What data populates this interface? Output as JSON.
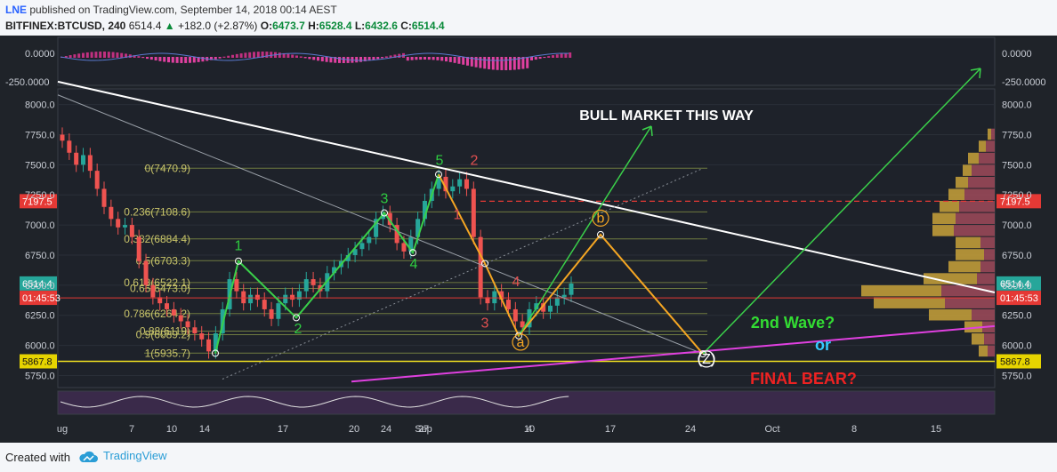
{
  "header": {
    "author": "LNE",
    "published_text": "published on TradingView.com, September 14, 2018 00:14 AEST",
    "symbol": "BITFINEX:BTCUSD, 240",
    "last": "6514.4",
    "change_arrow": "▲",
    "change": "+182.0 (+2.87%)",
    "open_label": "O:",
    "open": "6473.7",
    "high_label": "H:",
    "high": "6528.4",
    "low_label": "L:",
    "low": "6432.6",
    "close_label": "C:",
    "close": "6514.4"
  },
  "footer": {
    "created_with": "Created with",
    "brand": "TradingView",
    "brand_icon": "cloud-icon"
  },
  "chart_data": {
    "type": "candlestick",
    "y_axis": {
      "ticks": [
        5750,
        6000,
        6250,
        6500,
        6750,
        7000,
        7250,
        7500,
        7750,
        8000
      ],
      "tick_labels": [
        "5750.0",
        "6000.0",
        "6250.0",
        "6500.0",
        "6750.0",
        "7000.0",
        "7250.0",
        "7500.0",
        "7750.0",
        "8000.0"
      ],
      "range": [
        5650,
        8130
      ]
    },
    "x_axis": {
      "tick_labels": [
        "ug",
        "7",
        "10",
        "14",
        "17",
        "20",
        "24",
        "27",
        "Sep",
        "4",
        "10",
        "17",
        "24",
        "Oct",
        "8",
        "15"
      ]
    },
    "oscillator_axis": {
      "tick_labels": [
        "0.0000",
        "-250.0000"
      ]
    },
    "price_tags": [
      {
        "value": 7197.5,
        "label": "7197.5",
        "color": "#e53935"
      },
      {
        "value": 6514.4,
        "label": "6514.4",
        "color": "#26a69a"
      },
      {
        "value": 6395,
        "label": "01:45:53",
        "color": "#e53935"
      },
      {
        "value": 5867.8,
        "label": "5867.8",
        "color": "#e6d400"
      }
    ],
    "closes": [
      7700,
      7600,
      7500,
      7580,
      7450,
      7300,
      7150,
      7050,
      6980,
      7000,
      6900,
      6700,
      6500,
      6400,
      6350,
      6300,
      6250,
      6200,
      6150,
      6100,
      6050,
      5950,
      6100,
      6300,
      6550,
      6450,
      6350,
      6420,
      6380,
      6300,
      6220,
      6350,
      6420,
      6380,
      6450,
      6550,
      6500,
      6450,
      6600,
      6650,
      6700,
      6750,
      6800,
      6850,
      6900,
      7050,
      7100,
      7000,
      6850,
      6780,
      6900,
      7050,
      7200,
      7300,
      7400,
      7280,
      7320,
      7380,
      7300,
      6900,
      6400,
      6350,
      6450,
      6380,
      6300,
      6200,
      6150,
      6300,
      6350,
      6280,
      6330,
      6400,
      6420,
      6514
    ],
    "fib_levels": [
      {
        "label": "0(7470.9)",
        "value": 7470.9
      },
      {
        "label": "0.236(7108.6)",
        "value": 7108.6
      },
      {
        "label": "0.382(6884.4)",
        "value": 6884.4
      },
      {
        "label": "0.5(6703.3)",
        "value": 6703.3
      },
      {
        "label": "0.618(6522.1)",
        "value": 6522.1
      },
      {
        "label": "0.65(6473.0)",
        "value": 6473.0
      },
      {
        "label": "0.786(6264.2)",
        "value": 6264.2
      },
      {
        "label": "0.88(6119)",
        "value": 6119
      },
      {
        "label": "0.9(6089.2)",
        "value": 6089.2
      },
      {
        "label": "1(5935.7)",
        "value": 5935.7
      }
    ],
    "wave_labels": [
      {
        "text": "1",
        "color": "#2ecc40"
      },
      {
        "text": "2",
        "color": "#2ecc40"
      },
      {
        "text": "3",
        "color": "#2ecc40"
      },
      {
        "text": "4",
        "color": "#2ecc40"
      },
      {
        "text": "5",
        "color": "#2ecc40"
      },
      {
        "text": "2",
        "color": "#e05050"
      },
      {
        "text": "1",
        "color": "#e05050"
      },
      {
        "text": "3",
        "color": "#e05050"
      },
      {
        "text": "4",
        "color": "#e05050"
      },
      {
        "text": "a",
        "color": "#f5a623"
      },
      {
        "text": "b",
        "color": "#f5a623"
      },
      {
        "text": "(Z)",
        "color": "#ffffff"
      }
    ],
    "annotations": [
      {
        "text": "BULL MARKET THIS WAY",
        "color": "#ffffff"
      },
      {
        "text": "2nd Wave?",
        "color": "#33dd33"
      },
      {
        "text": "or",
        "color": "#33ccff"
      },
      {
        "text": "FINAL BEAR?",
        "color": "#ee2222"
      }
    ],
    "volume_profile": [
      {
        "price": 7750,
        "up": 4,
        "down": 4
      },
      {
        "price": 7650,
        "up": 8,
        "down": 10
      },
      {
        "price": 7550,
        "up": 12,
        "down": 18
      },
      {
        "price": 7450,
        "up": 10,
        "down": 26
      },
      {
        "price": 7350,
        "up": 14,
        "down": 30
      },
      {
        "price": 7250,
        "up": 18,
        "down": 34
      },
      {
        "price": 7150,
        "up": 22,
        "down": 40
      },
      {
        "price": 7050,
        "up": 26,
        "down": 44
      },
      {
        "price": 6950,
        "up": 24,
        "down": 46
      },
      {
        "price": 6850,
        "up": 28,
        "down": 16
      },
      {
        "price": 6750,
        "up": 32,
        "down": 12
      },
      {
        "price": 6650,
        "up": 36,
        "down": 16
      },
      {
        "price": 6550,
        "up": 60,
        "down": 20
      },
      {
        "price": 6450,
        "up": 90,
        "down": 60
      },
      {
        "price": 6350,
        "up": 80,
        "down": 56
      },
      {
        "price": 6250,
        "up": 48,
        "down": 26
      },
      {
        "price": 6150,
        "up": 20,
        "down": 14
      },
      {
        "price": 6050,
        "up": 14,
        "down": 12
      },
      {
        "price": 5950,
        "up": 10,
        "down": 8
      }
    ]
  }
}
